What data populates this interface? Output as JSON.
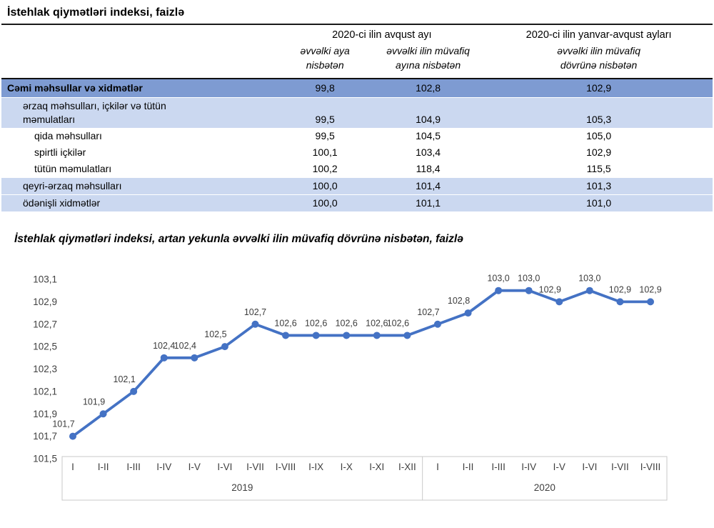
{
  "table": {
    "title": "İstehlak qiymətləri indeksi, faizlə",
    "col_groups": [
      {
        "label": "2020-ci ilin avqust ayı"
      },
      {
        "label": "2020-ci ilin yanvar-avqust ayları"
      }
    ],
    "col_headers": [
      "əvvəlki aya\nnisbətən",
      "əvvəlki ilin müvafiq\nayına nisbətən",
      "əvvəlki ilin müvafiq\ndövrünə nisbətən"
    ],
    "rows": [
      {
        "label": "Cəmi məhsullar və xidmətlər",
        "values": [
          "99,8",
          "102,8",
          "102,9"
        ],
        "style": "total"
      },
      {
        "label": "ərzaq məhsulları, içkilər və tütün\nməmulatları",
        "values": [
          "99,5",
          "104,9",
          "105,3"
        ],
        "style": "light"
      },
      {
        "label": "qida məhsulları",
        "values": [
          "99,5",
          "104,5",
          "105,0"
        ],
        "style": "plain"
      },
      {
        "label": "spirtli içkilər",
        "values": [
          "100,1",
          "103,4",
          "102,9"
        ],
        "style": "plain"
      },
      {
        "label": "tütün məmulatları",
        "values": [
          "100,2",
          "118,4",
          "115,5"
        ],
        "style": "plain"
      },
      {
        "label": "qeyri-ərzaq məhsulları",
        "values": [
          "100,0",
          "101,4",
          "101,3"
        ],
        "style": "light"
      },
      {
        "label": "ödənişli xidmətlər",
        "values": [
          "100,0",
          "101,1",
          "101,0"
        ],
        "style": "light"
      }
    ],
    "colors": {
      "total_row_bg": "#7E9BD2",
      "light_row_bg": "#CBD8F0"
    }
  },
  "chart_data": {
    "type": "line",
    "title": "İstehlak qiymətləri indeksi, artan yekunla əvvəlki ilin müvafiq dövrünə nisbətən, faizlə",
    "groups": [
      {
        "label": "2019",
        "categories": [
          "I",
          "I-II",
          "I-III",
          "I-IV",
          "I-V",
          "I-VI",
          "I-VII",
          "I-VIII",
          "I-IX",
          "I-X",
          "I-XI",
          "I-XII"
        ]
      },
      {
        "label": "2020",
        "categories": [
          "I",
          "I-II",
          "I-III",
          "I-IV",
          "I-V",
          "I-VI",
          "I-VII",
          "I-VIII"
        ]
      }
    ],
    "values": [
      101.7,
      101.9,
      102.1,
      102.4,
      102.4,
      102.5,
      102.7,
      102.6,
      102.6,
      102.6,
      102.6,
      102.6,
      102.7,
      102.8,
      103.0,
      103.0,
      102.9,
      103.0,
      102.9,
      102.9
    ],
    "ylim": [
      101.5,
      103.1
    ],
    "y_tick_step": 0.2,
    "y_tick_labels": [
      "101,5",
      "101,7",
      "101,9",
      "102,1",
      "102,3",
      "102,5",
      "102,7",
      "102,9",
      "103,1"
    ],
    "decimal_separator": ",",
    "line_color": "#4472C4",
    "label_color": "#3d3d3d",
    "axis_color": "#404040",
    "grid": false,
    "legend": "none",
    "data_labels": true
  }
}
